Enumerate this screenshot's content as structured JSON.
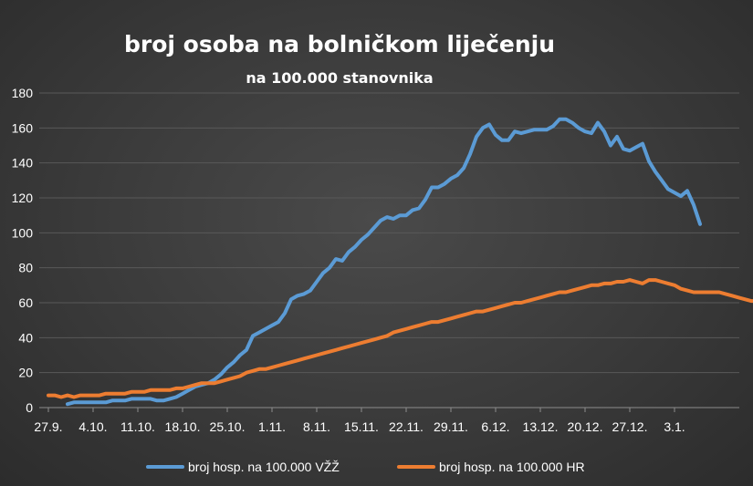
{
  "chart_data": {
    "type": "line",
    "title": "broj osoba na bolničkom liječenju",
    "subtitle": "na 100.000 stanovnika",
    "xlabel": "",
    "ylabel": "",
    "ylim": [
      0,
      180
    ],
    "yticks": [
      "0",
      "20",
      "40",
      "60",
      "80",
      "100",
      "120",
      "140",
      "160",
      "180"
    ],
    "x_tick_labels": [
      "27.9.",
      "4.10.",
      "11.10.",
      "18.10.",
      "25.10.",
      "1.11.",
      "8.11.",
      "15.11.",
      "22.11.",
      "29.11.",
      "6.12.",
      "13.12.",
      "20.12.",
      "27.12.",
      "3.1."
    ],
    "x_start_label": "27.9.",
    "grid": true,
    "legend_position": "bottom",
    "series": [
      {
        "name": "broj hosp. na 100.000 VŽŽ",
        "color": "#5b9bd5",
        "start_day": 3,
        "values": [
          2,
          3,
          3,
          3,
          3,
          3,
          3,
          4,
          4,
          4,
          5,
          5,
          5,
          5,
          4,
          4,
          5,
          6,
          8,
          10,
          12,
          13,
          14,
          16,
          19,
          23,
          26,
          30,
          33,
          41,
          43,
          45,
          47,
          49,
          54,
          62,
          64,
          65,
          67,
          72,
          77,
          80,
          85,
          84,
          89,
          92,
          96,
          99,
          103,
          107,
          109,
          108,
          110,
          110,
          113,
          114,
          119,
          126,
          126,
          128,
          131,
          133,
          137,
          145,
          155,
          160,
          162,
          156,
          153,
          153,
          158,
          157,
          158,
          159,
          159,
          159,
          161,
          165,
          165,
          163,
          160,
          158,
          157,
          163,
          158,
          150,
          155,
          148,
          147,
          149,
          151,
          141,
          135,
          130,
          125,
          123,
          121,
          124,
          116,
          105
        ]
      },
      {
        "name": "broj hosp. na 100.000 HR",
        "color": "#ed7d31",
        "start_day": 0,
        "values": [
          7,
          7,
          6,
          7,
          6,
          7,
          7,
          7,
          7,
          8,
          8,
          8,
          8,
          9,
          9,
          9,
          10,
          10,
          10,
          10,
          11,
          11,
          12,
          13,
          14,
          14,
          14,
          15,
          16,
          17,
          18,
          20,
          21,
          22,
          22,
          23,
          24,
          25,
          26,
          27,
          28,
          29,
          30,
          31,
          32,
          33,
          34,
          35,
          36,
          37,
          38,
          39,
          40,
          41,
          43,
          44,
          45,
          46,
          47,
          48,
          49,
          49,
          50,
          51,
          52,
          53,
          54,
          55,
          55,
          56,
          57,
          58,
          59,
          60,
          60,
          61,
          62,
          63,
          64,
          65,
          66,
          66,
          67,
          68,
          69,
          70,
          70,
          71,
          71,
          72,
          72,
          73,
          72,
          71,
          73,
          73,
          72,
          71,
          70,
          68,
          67,
          66,
          66,
          66,
          66,
          66,
          65,
          64,
          63,
          62,
          61,
          61,
          61,
          60,
          60,
          59,
          58,
          56
        ]
      }
    ]
  }
}
